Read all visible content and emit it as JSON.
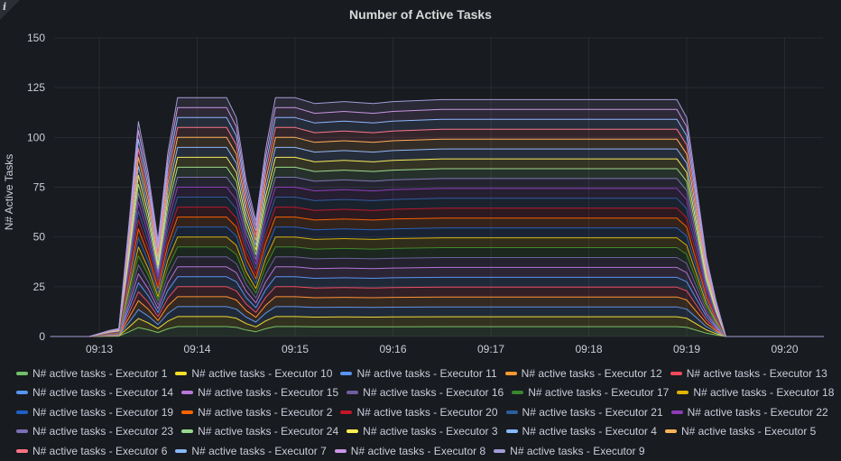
{
  "panel": {
    "info_icon": "info-icon",
    "title": "Number of Active Tasks"
  },
  "chart_data": {
    "type": "area",
    "stacked": true,
    "title": "Number of Active Tasks",
    "xlabel": "",
    "ylabel": "N# Active Tasks",
    "ylim": [
      0,
      150
    ],
    "yticks": [
      "0",
      "25",
      "50",
      "75",
      "100",
      "125",
      "150"
    ],
    "xticks": [
      "09:13",
      "09:14",
      "09:15",
      "09:16",
      "09:17",
      "09:18",
      "09:19",
      "09:20"
    ],
    "grid": true,
    "legend_position": "bottom",
    "x": [
      "09:12:30",
      "09:12:54",
      "09:13:06",
      "09:13:12",
      "09:13:18",
      "09:13:24",
      "09:13:30",
      "09:13:36",
      "09:13:42",
      "09:13:48",
      "09:14:18",
      "09:14:24",
      "09:14:30",
      "09:14:36",
      "09:14:42",
      "09:14:48",
      "09:15:00",
      "09:15:12",
      "09:15:30",
      "09:15:48",
      "09:16:00",
      "09:16:30",
      "09:17:00",
      "09:17:30",
      "09:18:00",
      "09:18:30",
      "09:18:54",
      "09:19:00",
      "09:19:06",
      "09:19:12",
      "09:19:18",
      "09:19:24",
      "09:19:36",
      "09:20:24"
    ],
    "total": [
      0,
      0,
      3,
      4,
      55,
      108,
      82,
      48,
      92,
      120,
      120,
      110,
      78,
      58,
      94,
      120,
      120,
      117,
      118,
      117,
      118,
      119,
      119,
      119,
      119,
      119,
      119,
      110,
      75,
      40,
      18,
      0,
      0,
      0
    ],
    "per_executor_steady_value": 5,
    "series": [
      {
        "name": "N# active tasks - Executor 1",
        "color": "#73bf69"
      },
      {
        "name": "N# active tasks - Executor 10",
        "color": "#fade2a"
      },
      {
        "name": "N# active tasks - Executor 11",
        "color": "#5794f2"
      },
      {
        "name": "N# active tasks - Executor 12",
        "color": "#ff9830"
      },
      {
        "name": "N# active tasks - Executor 13",
        "color": "#f2495c"
      },
      {
        "name": "N# active tasks - Executor 14",
        "color": "#5794f2"
      },
      {
        "name": "N# active tasks - Executor 15",
        "color": "#b877d9"
      },
      {
        "name": "N# active tasks - Executor 16",
        "color": "#705da0"
      },
      {
        "name": "N# active tasks - Executor 17",
        "color": "#37872d"
      },
      {
        "name": "N# active tasks - Executor 18",
        "color": "#e0b400"
      },
      {
        "name": "N# active tasks - Executor 19",
        "color": "#1f60c4"
      },
      {
        "name": "N# active tasks - Executor 2",
        "color": "#fa6400"
      },
      {
        "name": "N# active tasks - Executor 20",
        "color": "#c4162a"
      },
      {
        "name": "N# active tasks - Executor 21",
        "color": "#2c5e9c"
      },
      {
        "name": "N# active tasks - Executor 22",
        "color": "#8f3bb8"
      },
      {
        "name": "N# active tasks - Executor 23",
        "color": "#7d6eb5"
      },
      {
        "name": "N# active tasks - Executor 24",
        "color": "#96d98d"
      },
      {
        "name": "N# active tasks - Executor 3",
        "color": "#ffee52"
      },
      {
        "name": "N# active tasks - Executor 4",
        "color": "#8ab8ff"
      },
      {
        "name": "N# active tasks - Executor 5",
        "color": "#ffb357"
      },
      {
        "name": "N# active tasks - Executor 6",
        "color": "#ff7383"
      },
      {
        "name": "N# active tasks - Executor 7",
        "color": "#8ab8ff"
      },
      {
        "name": "N# active tasks - Executor 8",
        "color": "#ca95e5"
      },
      {
        "name": "N# active tasks - Executor 9",
        "color": "#a59bd8"
      }
    ]
  }
}
